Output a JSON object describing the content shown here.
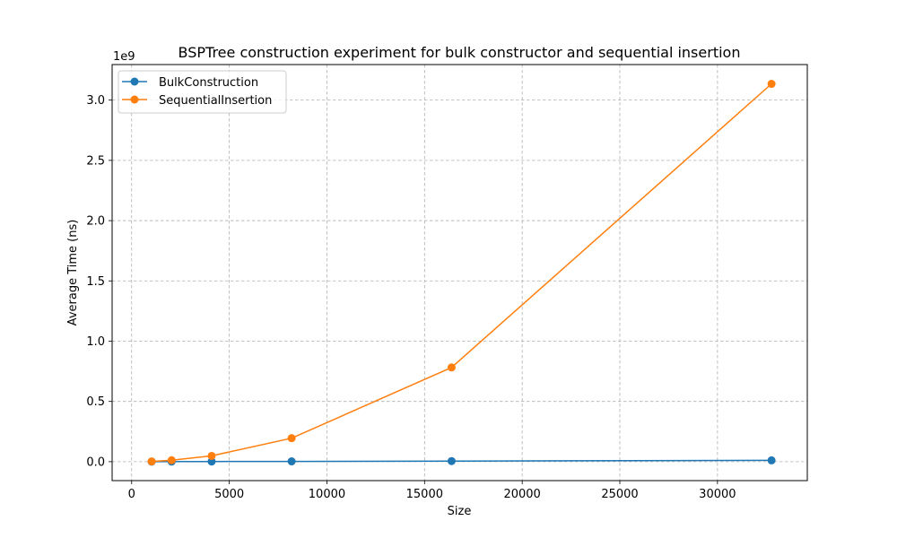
{
  "chart_data": {
    "type": "line",
    "title": "BSPTree construction experiment for bulk constructor and sequential insertion",
    "xlabel": "Size",
    "ylabel": "Average Time (ns)",
    "y_offset_label": "1e9",
    "xlim": [
      -1000,
      34600
    ],
    "ylim": [
      -0.157,
      3.295
    ],
    "x_ticks": [
      0,
      5000,
      10000,
      15000,
      20000,
      25000,
      30000
    ],
    "x_tick_labels": [
      "0",
      "5000",
      "10000",
      "15000",
      "20000",
      "25000",
      "30000"
    ],
    "y_ticks": [
      0.0,
      0.5,
      1.0,
      1.5,
      2.0,
      2.5,
      3.0
    ],
    "y_tick_labels": [
      "0.0",
      "0.5",
      "1.0",
      "1.5",
      "2.0",
      "2.5",
      "3.0"
    ],
    "grid": true,
    "legend_position": "upper-left",
    "x": [
      1024,
      2048,
      4096,
      8192,
      16384,
      32768
    ],
    "series": [
      {
        "name": "BulkConstruction",
        "color": "#1f77b4",
        "values": [
          0.0003,
          0.0007,
          0.0015,
          0.0025,
          0.005,
          0.011
        ]
      },
      {
        "name": "SequentialInsertion",
        "color": "#ff7f0e",
        "values": [
          0.002,
          0.012,
          0.048,
          0.195,
          0.782,
          3.135
        ]
      }
    ]
  }
}
